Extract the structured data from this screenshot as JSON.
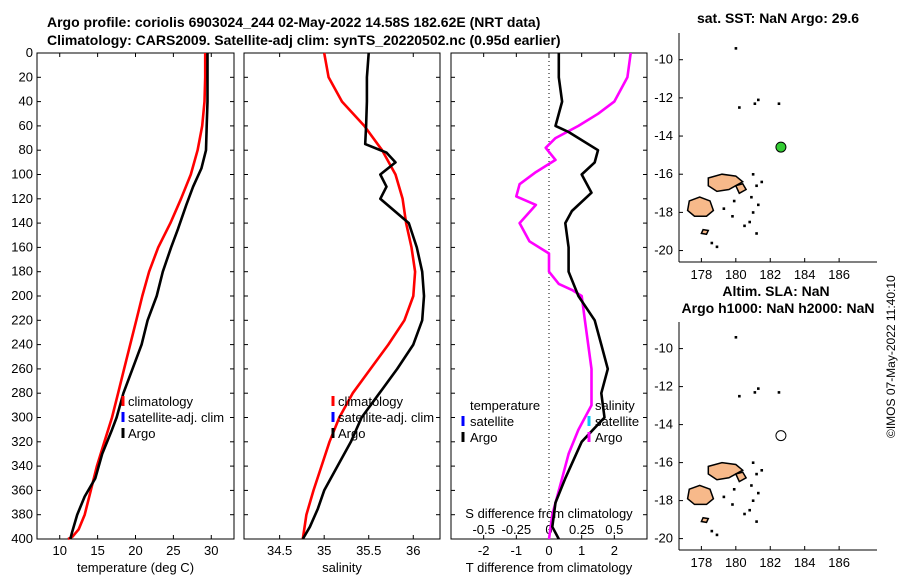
{
  "titles": {
    "line1": "Argo profile: coriolis 6903024_244 02-May-2022 14.58S 182.62E (NRT data)",
    "line2": "Climatology: CARS2009. Satellite-adj clim: synTS_20220502.nc (0.95d earlier)"
  },
  "chart_data": [
    {
      "id": "temperature",
      "type": "line",
      "xlabel": "temperature (deg C)",
      "xlim": [
        7,
        33
      ],
      "ylim": [
        0,
        400
      ],
      "y_reversed": true,
      "xticks": [
        10,
        15,
        20,
        25,
        30
      ],
      "xticklabels": [
        "10",
        "15",
        "20",
        "25",
        "30"
      ],
      "yticks": [
        0,
        20,
        40,
        60,
        80,
        100,
        120,
        140,
        160,
        180,
        200,
        220,
        240,
        260,
        280,
        300,
        320,
        340,
        360,
        380,
        400
      ],
      "series": [
        {
          "name": "climatology",
          "color": "#ff0000",
          "x": [
            29.2,
            29.2,
            29.1,
            28.8,
            28.2,
            27.3,
            26.0,
            24.6,
            23.0,
            21.8,
            20.9,
            20.1,
            19.3,
            18.5,
            17.7,
            16.9,
            15.9,
            14.9,
            14.1,
            13.3,
            12.5,
            11.7,
            11.1
          ],
          "y": [
            0,
            20,
            40,
            60,
            80,
            100,
            120,
            140,
            160,
            180,
            200,
            220,
            240,
            260,
            280,
            300,
            320,
            340,
            360,
            380,
            392,
            398,
            400
          ]
        },
        {
          "name": "Argo",
          "color": "#000000",
          "x": [
            29.5,
            29.5,
            29.5,
            29.4,
            29.3,
            28.7,
            27.6,
            26.7,
            25.6,
            24.7,
            23.6,
            22.8,
            21.6,
            20.8,
            19.6,
            18.4,
            17.5,
            16.9,
            15.6,
            14.7,
            13.3,
            12.3,
            11.6,
            11.4
          ],
          "y": [
            0,
            20,
            40,
            60,
            80,
            95,
            110,
            125,
            145,
            160,
            180,
            200,
            220,
            240,
            260,
            280,
            300,
            310,
            330,
            350,
            365,
            380,
            395,
            400
          ]
        }
      ],
      "legend": [
        "climatology",
        "satellite-adj. clim",
        "Argo"
      ]
    },
    {
      "id": "salinity",
      "type": "line",
      "xlabel": "salinity",
      "xlim": [
        34.1,
        36.3
      ],
      "ylim": [
        0,
        400
      ],
      "y_reversed": true,
      "xticks": [
        34.5,
        35,
        35.5,
        36
      ],
      "xticklabels": [
        "34.5",
        "35",
        "35.5",
        "36"
      ],
      "series": [
        {
          "name": "climatology",
          "color": "#ff0000",
          "x": [
            35.0,
            35.05,
            35.2,
            35.45,
            35.65,
            35.8,
            35.88,
            35.92,
            35.98,
            36.02,
            36.0,
            35.9,
            35.72,
            35.52,
            35.32,
            35.17,
            35.06,
            34.97,
            34.88,
            34.8,
            34.76
          ],
          "y": [
            0,
            20,
            40,
            60,
            80,
            100,
            120,
            140,
            160,
            180,
            200,
            220,
            240,
            260,
            280,
            300,
            320,
            340,
            360,
            380,
            400
          ]
        },
        {
          "name": "Argo",
          "color": "#000000",
          "x": [
            35.5,
            35.48,
            35.48,
            35.47,
            35.46,
            35.7,
            35.8,
            35.63,
            35.7,
            35.63,
            35.95,
            36.04,
            36.1,
            36.12,
            36.1,
            36.0,
            35.82,
            35.62,
            35.42,
            35.3,
            35.15,
            35.0,
            34.93,
            34.84,
            34.76
          ],
          "y": [
            0,
            20,
            40,
            60,
            75,
            82,
            90,
            100,
            110,
            120,
            140,
            160,
            180,
            200,
            220,
            240,
            260,
            280,
            300,
            320,
            340,
            360,
            375,
            390,
            400
          ]
        }
      ],
      "legend": [
        "climatology",
        "satellite-adj. clim",
        "Argo"
      ]
    },
    {
      "id": "difference",
      "type": "line",
      "xlabel": "T difference from climatology",
      "toplabel": "S difference from climatology",
      "xlim": [
        -3,
        3
      ],
      "ylim": [
        0,
        400
      ],
      "y_reversed": true,
      "xticks": [
        -2,
        -1,
        0,
        1,
        2
      ],
      "xticklabels": [
        "-2",
        "-1",
        "0",
        "1",
        "2"
      ],
      "sticks": [
        -0.5,
        -0.25,
        0,
        0.25,
        0.5
      ],
      "sticklabels": [
        "-0.5",
        "-0.25",
        "0",
        "0.25",
        "0.5"
      ],
      "series": [
        {
          "name": "salinity",
          "color": "#ff00ff",
          "x": [
            2.5,
            2.4,
            2.0,
            1.5,
            0.9,
            0.2,
            -0.1,
            0.2,
            -0.4,
            -0.9,
            -1.0,
            -0.4,
            -0.9,
            -0.6,
            0.0,
            0.0,
            0.3,
            0.7,
            1.0,
            1.1,
            1.2,
            1.3,
            1.3,
            0.9,
            0.6,
            0.4,
            0.1,
            0.0
          ],
          "y": [
            0,
            20,
            40,
            50,
            60,
            70,
            78,
            88,
            98,
            108,
            118,
            125,
            140,
            155,
            165,
            180,
            190,
            195,
            200,
            220,
            240,
            260,
            290,
            310,
            330,
            350,
            380,
            400
          ]
        },
        {
          "name": "temperature",
          "color": "#000000",
          "x": [
            0.3,
            0.3,
            0.4,
            0.2,
            0.6,
            1.5,
            1.4,
            1.0,
            1.3,
            0.7,
            0.5,
            0.6,
            0.6,
            0.9,
            1.4,
            1.6,
            1.8,
            1.6,
            1.7,
            1.0,
            0.5,
            0.2,
            0.1,
            0.3
          ],
          "y": [
            0,
            20,
            40,
            60,
            65,
            80,
            90,
            100,
            115,
            130,
            140,
            160,
            180,
            200,
            220,
            240,
            260,
            280,
            300,
            320,
            350,
            370,
            390,
            400
          ]
        }
      ],
      "legend_left": [
        "temperature",
        "satellite",
        "Argo"
      ],
      "legend_right": [
        "salinity",
        "satellite",
        "Argo"
      ]
    }
  ],
  "maps": {
    "sst_title": "sat. SST: NaN Argo: 29.6",
    "sla_title1": "Altim. SLA: NaN",
    "sla_title2": "Argo h1000: NaN h2000: NaN",
    "xticks": [
      178,
      180,
      182,
      184,
      186
    ],
    "xticklabels": [
      "178",
      "180",
      "182",
      "184",
      "186"
    ],
    "yticks": [
      -10,
      -12,
      -14,
      -16,
      -18,
      -20
    ],
    "yticklabels": [
      "-10",
      "-12",
      "-14",
      "-16",
      "-18",
      "-20"
    ],
    "lon_range": [
      176.7,
      188.2
    ],
    "lat_range": [
      -20.6,
      -8.6
    ],
    "argo_lon": 182.62,
    "argo_lat": -14.58,
    "sst_marker_color": "#33cc33",
    "land_color": "#f7b98a"
  },
  "stamp": "©IMOS 07-May-2022 11:40:10"
}
